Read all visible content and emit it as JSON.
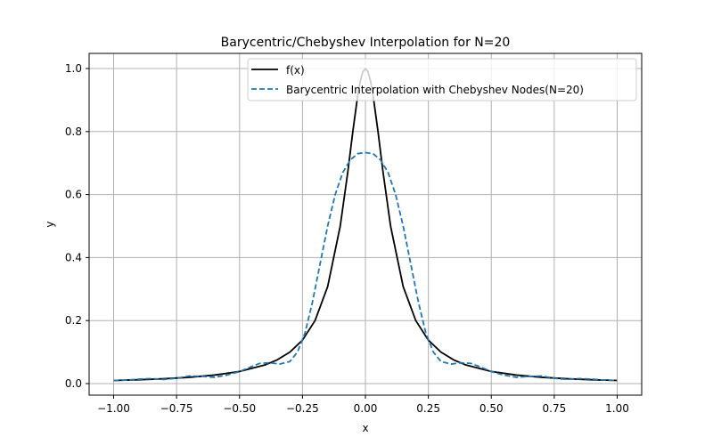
{
  "chart_data": {
    "type": "line",
    "title": "Barycentric/Chebyshev Interpolation for N=20",
    "xlabel": "x",
    "ylabel": "y",
    "xlim": [
      -1.0,
      1.0
    ],
    "ylim": [
      0.0,
      1.0
    ],
    "xticks": [
      -1.0,
      -0.75,
      -0.5,
      -0.25,
      0.0,
      0.25,
      0.5,
      0.75,
      1.0
    ],
    "xtick_labels": [
      "−1.00",
      "−0.75",
      "−0.50",
      "−0.25",
      "0.00",
      "0.25",
      "0.50",
      "0.75",
      "1.00"
    ],
    "yticks": [
      0.0,
      0.2,
      0.4,
      0.6,
      0.8,
      1.0
    ],
    "ytick_labels": [
      "0.0",
      "0.2",
      "0.4",
      "0.6",
      "0.8",
      "1.0"
    ],
    "grid": true,
    "legend_position": "top-right",
    "series": [
      {
        "name": "f(x)",
        "color": "#000000",
        "style": "solid",
        "x": [
          -1.0,
          -0.9,
          -0.8,
          -0.7,
          -0.6,
          -0.5,
          -0.4,
          -0.35,
          -0.3,
          -0.25,
          -0.2,
          -0.15,
          -0.1,
          -0.07,
          -0.05,
          -0.03,
          -0.02,
          -0.01,
          0.0,
          0.01,
          0.02,
          0.03,
          0.05,
          0.07,
          0.1,
          0.15,
          0.2,
          0.25,
          0.3,
          0.35,
          0.4,
          0.5,
          0.6,
          0.7,
          0.8,
          0.9,
          1.0
        ],
        "y": [
          0.0099,
          0.0122,
          0.0154,
          0.02,
          0.027,
          0.0385,
          0.0588,
          0.0755,
          0.1,
          0.1379,
          0.2,
          0.3077,
          0.5,
          0.6711,
          0.8,
          0.9174,
          0.9615,
          0.9901,
          1.0,
          0.9901,
          0.9615,
          0.9174,
          0.8,
          0.6711,
          0.5,
          0.3077,
          0.2,
          0.1379,
          0.1,
          0.0755,
          0.0588,
          0.0385,
          0.027,
          0.02,
          0.0154,
          0.0122,
          0.0099
        ]
      },
      {
        "name": "Barycentric Interpolation with Chebyshev Nodes(N=20)",
        "color": "#1f77b4",
        "style": "dashed",
        "x": [
          -1.0,
          -0.95,
          -0.9,
          -0.85,
          -0.8,
          -0.75,
          -0.7,
          -0.65,
          -0.6,
          -0.55,
          -0.5,
          -0.45,
          -0.42,
          -0.38,
          -0.34,
          -0.3,
          -0.27,
          -0.24,
          -0.21,
          -0.18,
          -0.15,
          -0.12,
          -0.09,
          -0.06,
          -0.03,
          0.0,
          0.03,
          0.06,
          0.09,
          0.12,
          0.15,
          0.18,
          0.21,
          0.24,
          0.27,
          0.3,
          0.34,
          0.38,
          0.42,
          0.45,
          0.5,
          0.55,
          0.6,
          0.65,
          0.7,
          0.75,
          0.8,
          0.85,
          0.9,
          0.95,
          1.0
        ],
        "y": [
          0.0099,
          0.011,
          0.014,
          0.016,
          0.013,
          0.017,
          0.024,
          0.023,
          0.02,
          0.027,
          0.038,
          0.055,
          0.064,
          0.066,
          0.062,
          0.07,
          0.1,
          0.16,
          0.26,
          0.38,
          0.5,
          0.6,
          0.67,
          0.71,
          0.73,
          0.733,
          0.73,
          0.71,
          0.67,
          0.6,
          0.5,
          0.38,
          0.26,
          0.16,
          0.1,
          0.07,
          0.062,
          0.066,
          0.064,
          0.055,
          0.038,
          0.027,
          0.02,
          0.023,
          0.024,
          0.017,
          0.013,
          0.016,
          0.014,
          0.011,
          0.0099
        ]
      }
    ]
  }
}
